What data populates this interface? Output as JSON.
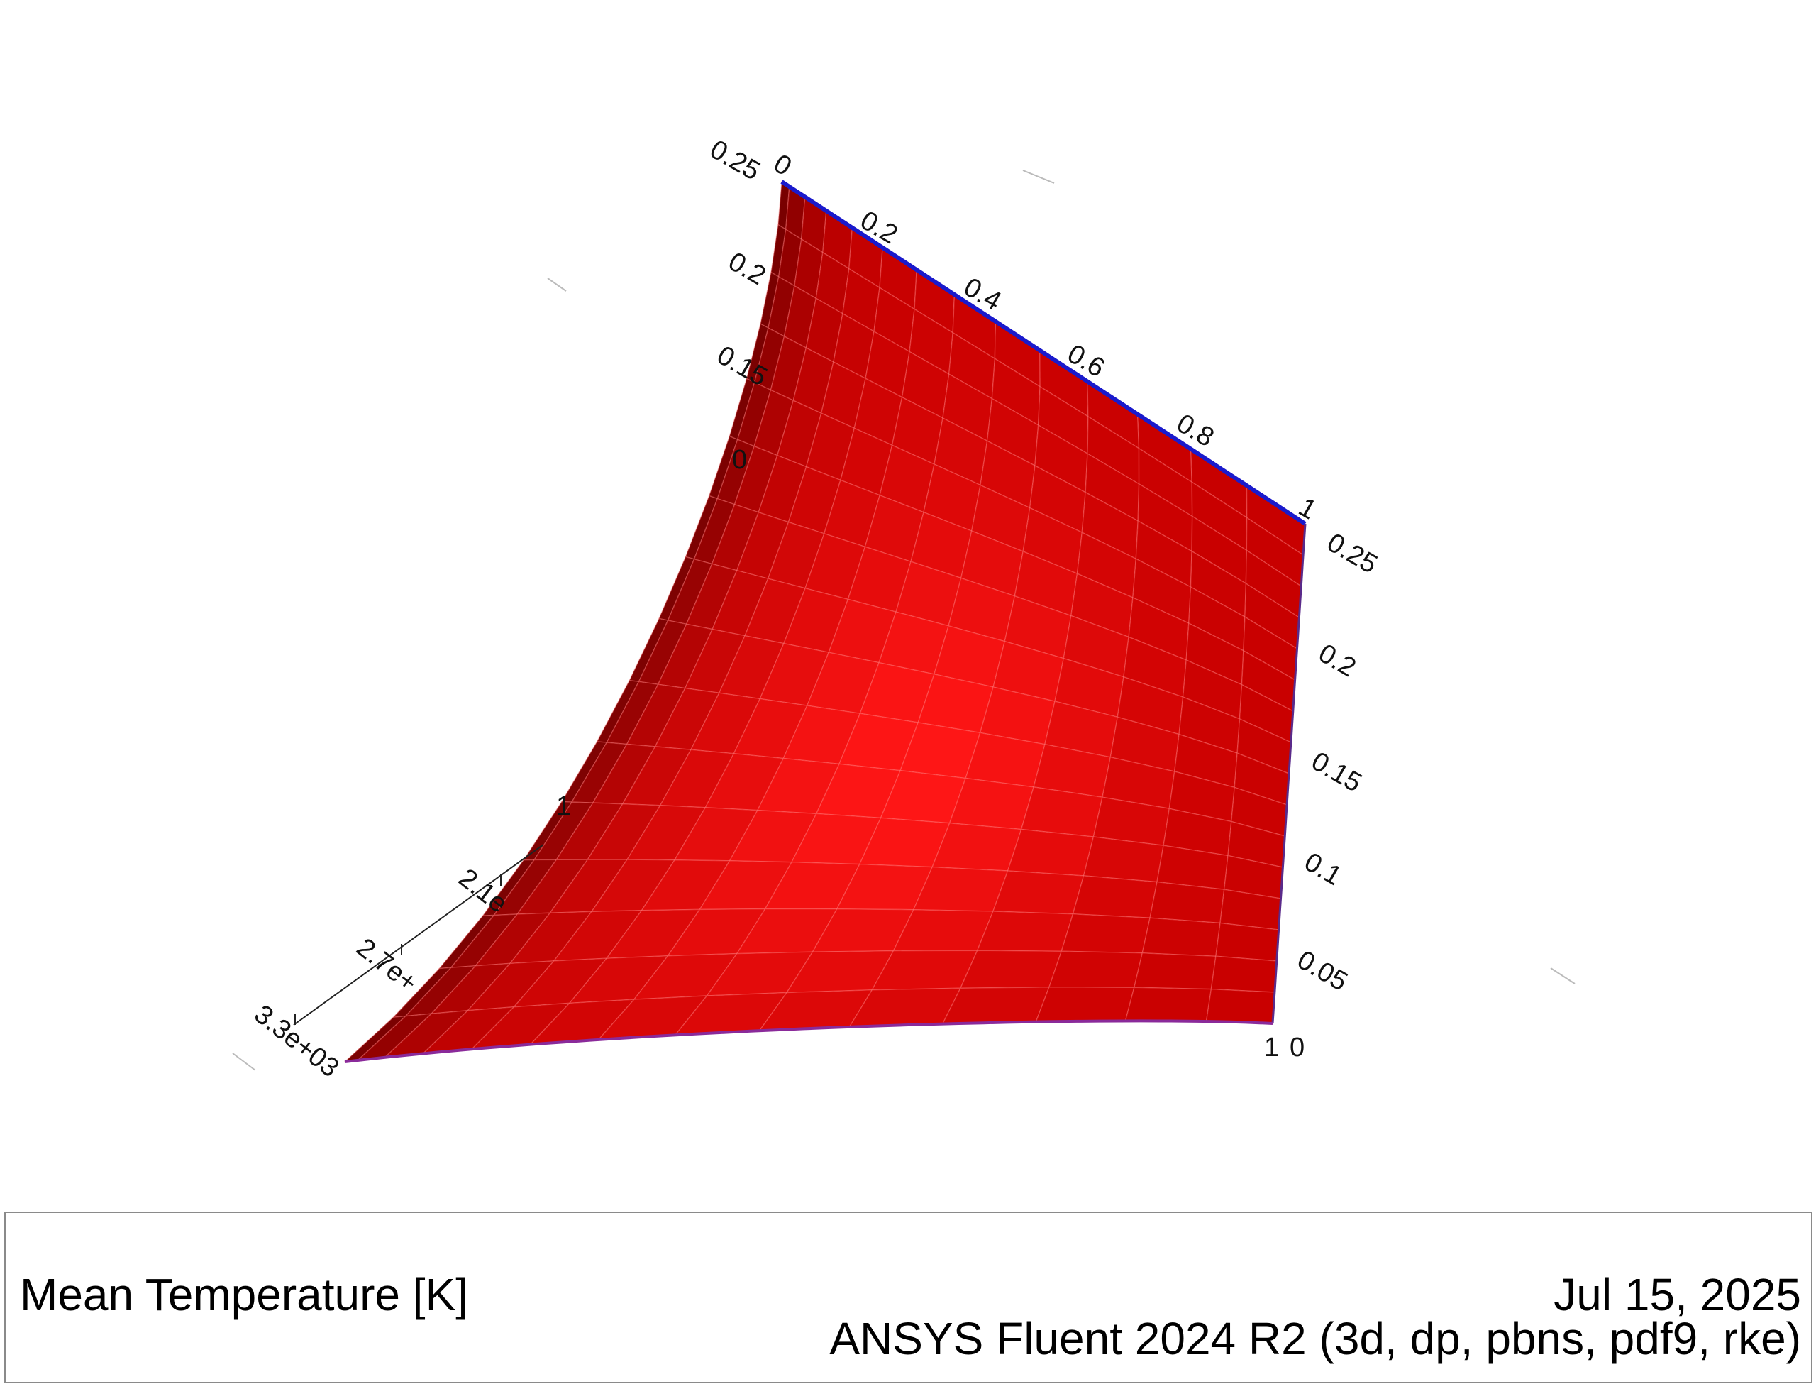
{
  "footer": {
    "title": "Mean Temperature [K]",
    "date": "Jul 15, 2025",
    "product": "ANSYS Fluent 2024 R2 (3d, dp, pbns, pdf9, rke)"
  },
  "chart_data": {
    "type": "surface-3d",
    "title": "Mean Temperature [K]",
    "surface_color": "#e80000",
    "edge_color": "#1a1acc",
    "axes": [
      {
        "name": "top-edge-axis",
        "range": [
          0,
          1
        ],
        "ticks": [
          "0",
          "0.2",
          "0.4",
          "0.6",
          "0.8",
          "1"
        ]
      },
      {
        "name": "right-edge-axis",
        "range": [
          0,
          0.25
        ],
        "ticks": [
          "0",
          "0.05",
          "0.1",
          "0.15",
          "0.2",
          "0.25"
        ]
      },
      {
        "name": "left-edge-axis",
        "range": [
          0,
          0.25
        ],
        "ticks": [
          "0",
          "0.15",
          "0.2",
          "0.25"
        ]
      },
      {
        "name": "temperature-axis",
        "ticks": [
          "1",
          "2.1e",
          "2.7e+",
          "3.3e+03"
        ]
      }
    ],
    "bottom-right-label": "1"
  }
}
